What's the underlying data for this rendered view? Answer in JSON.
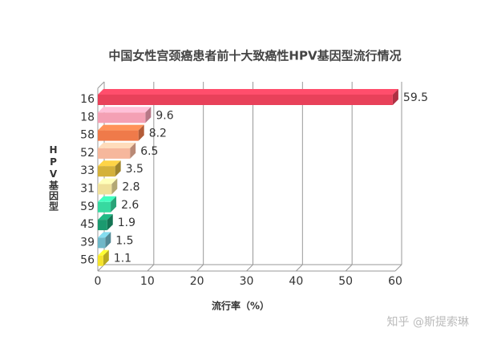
{
  "chart_data": {
    "type": "bar3d_horizontal",
    "title": "中国女性宫颈癌患者前十大致癌性HPV基因型流行情况",
    "x_label": "流行率（%）",
    "y_label": "HPV基因型",
    "categories": [
      "16",
      "18",
      "58",
      "52",
      "33",
      "31",
      "59",
      "45",
      "39",
      "56"
    ],
    "values": [
      59.5,
      9.6,
      8.2,
      6.5,
      3.5,
      2.8,
      2.6,
      1.9,
      1.5,
      1.1
    ],
    "colors": [
      "#e8415a",
      "#f4a0b4",
      "#ef7a4a",
      "#f6b79c",
      "#d4b13a",
      "#efe09a",
      "#37d9a0",
      "#1b9a6f",
      "#6fb8c8",
      "#f5e32a"
    ],
    "xlim": [
      0,
      60
    ],
    "xticks": [
      0,
      10,
      20,
      30,
      40,
      50,
      60
    ],
    "grid": true,
    "watermark": "知乎 @斯提索琳"
  }
}
